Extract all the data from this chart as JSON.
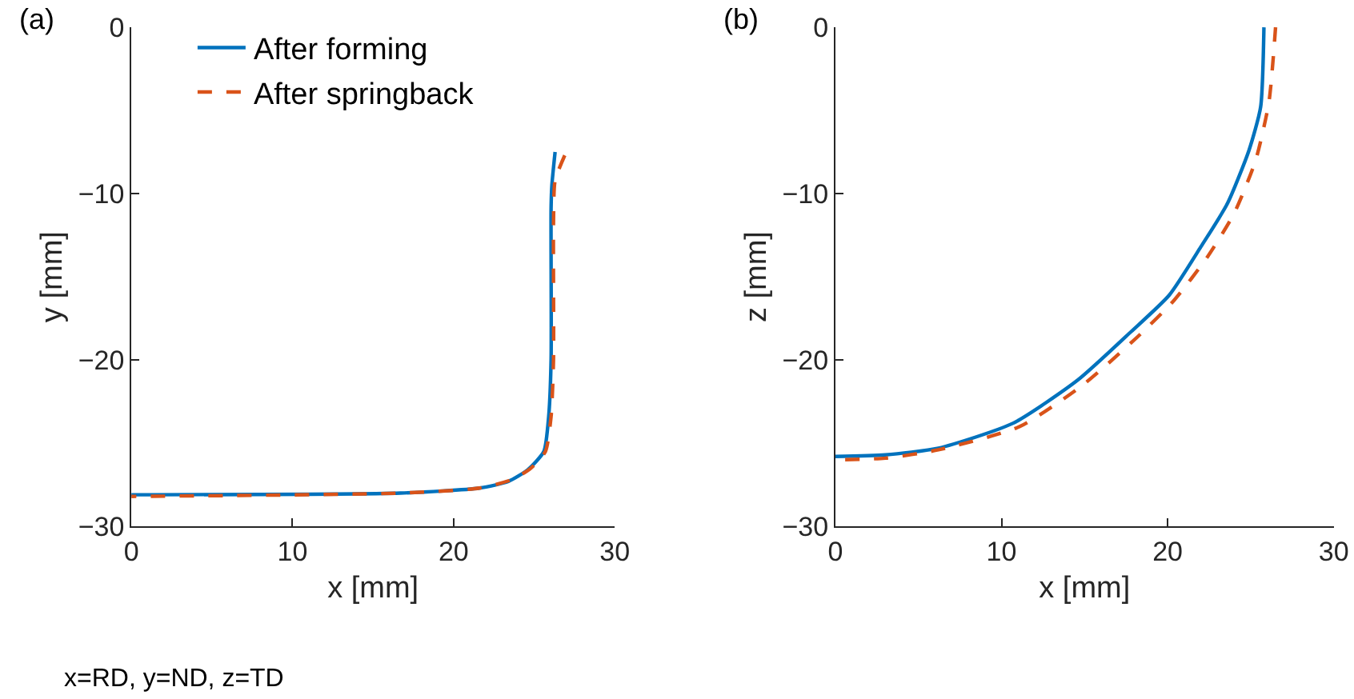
{
  "chart_data": [
    {
      "type": "line",
      "xlabel": "x [mm]",
      "ylabel": "y [mm]",
      "annotations": [
        "(a)",
        "x=RD, y=ND, z=TD"
      ],
      "xlim": [
        0,
        30
      ],
      "ylim": [
        -30,
        0
      ],
      "xticks": [
        0,
        10,
        20,
        30
      ],
      "yticks": [
        -30,
        -20,
        -10,
        0
      ],
      "legend": "top",
      "series": [
        {
          "name": "After forming",
          "color": "#0072bd",
          "line_style": "solid",
          "x": [
            26.3,
            26.1,
            26.05,
            26.05,
            25.9,
            25.6,
            24.6,
            23.4,
            21.6,
            16.7,
            0
          ],
          "values": [
            -7.5,
            -9.5,
            -10.9,
            -20,
            -23.4,
            -25.5,
            -26.6,
            -27.3,
            -27.7,
            -28.0,
            -28.1
          ]
        },
        {
          "name": "After springback",
          "color": "#d95319",
          "line_style": "dashed",
          "x": [
            26.9,
            26.3,
            26.2,
            26.2,
            26.05,
            25.7,
            24.8,
            23.6,
            21.6,
            16.7,
            0
          ],
          "values": [
            -7.7,
            -9.2,
            -11.8,
            -20,
            -23.4,
            -25.5,
            -26.5,
            -27.2,
            -27.7,
            -28.0,
            -28.2
          ]
        }
      ]
    },
    {
      "type": "line",
      "xlabel": "x [mm]",
      "ylabel": "z [mm]",
      "annotations": [
        "(b)"
      ],
      "xlim": [
        0,
        30
      ],
      "ylim": [
        -30,
        0
      ],
      "xticks": [
        0,
        10,
        20,
        30
      ],
      "yticks": [
        -30,
        -20,
        -10,
        0
      ],
      "series": [
        {
          "color": "#0072bd",
          "line_style": "solid",
          "x": [
            25.8,
            25.6,
            24.9,
            23.6,
            22.0,
            20.1,
            17.8,
            14.6,
            10.7,
            6.2,
            3.0,
            0
          ],
          "values": [
            0,
            -4.8,
            -7.4,
            -10.6,
            -13.2,
            -16.1,
            -18.3,
            -21.2,
            -23.8,
            -25.3,
            -25.7,
            -25.8
          ]
        },
        {
          "color": "#d95319",
          "line_style": "dashed",
          "x": [
            26.5,
            26.1,
            25.3,
            24.0,
            22.4,
            20.4,
            18.2,
            14.9,
            11.1,
            6.2,
            3.0,
            0
          ],
          "values": [
            0,
            -4.5,
            -8.0,
            -11.2,
            -13.8,
            -16.4,
            -18.6,
            -21.5,
            -24.0,
            -25.4,
            -25.9,
            -26.0
          ]
        }
      ]
    }
  ]
}
